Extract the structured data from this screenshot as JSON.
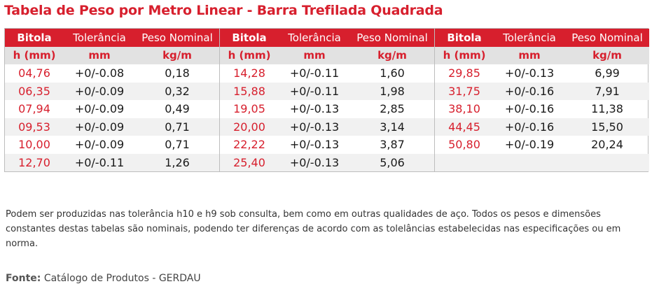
{
  "colors": {
    "accent": "#d71f2d"
  },
  "title": "Tabela de Peso por Metro Linear - Barra Trefilada Quadrada",
  "headers": {
    "bitola": "Bitola",
    "tolerancia": "Tolerância",
    "peso": "Peso Nominal"
  },
  "units": {
    "bitola": "h (mm)",
    "tolerancia": "mm",
    "peso": "kg/m"
  },
  "blocks": [
    {
      "rows": [
        {
          "bitola": "04,76",
          "tolerancia": "+0/-0.08",
          "peso": "0,18"
        },
        {
          "bitola": "06,35",
          "tolerancia": "+0/-0.09",
          "peso": "0,32"
        },
        {
          "bitola": "07,94",
          "tolerancia": "+0/-0.09",
          "peso": "0,49"
        },
        {
          "bitola": "09,53",
          "tolerancia": "+0/-0.09",
          "peso": "0,71"
        },
        {
          "bitola": "10,00",
          "tolerancia": "+0/-0.09",
          "peso": "0,71"
        },
        {
          "bitola": "12,70",
          "tolerancia": "+0/-0.11",
          "peso": "1,26"
        }
      ]
    },
    {
      "rows": [
        {
          "bitola": "14,28",
          "tolerancia": "+0/-0.11",
          "peso": "1,60"
        },
        {
          "bitola": "15,88",
          "tolerancia": "+0/-0.11",
          "peso": "1,98"
        },
        {
          "bitola": "19,05",
          "tolerancia": "+0/-0.13",
          "peso": "2,85"
        },
        {
          "bitola": "20,00",
          "tolerancia": "+0/-0.13",
          "peso": "3,14"
        },
        {
          "bitola": "22,22",
          "tolerancia": "+0/-0.13",
          "peso": "3,87"
        },
        {
          "bitola": "25,40",
          "tolerancia": "+0/-0.13",
          "peso": "5,06"
        }
      ]
    },
    {
      "rows": [
        {
          "bitola": "29,85",
          "tolerancia": "+0/-0.13",
          "peso": "6,99"
        },
        {
          "bitola": "31,75",
          "tolerancia": "+0/-0.16",
          "peso": "7,91"
        },
        {
          "bitola": "38,10",
          "tolerancia": "+0/-0.16",
          "peso": "11,38"
        },
        {
          "bitola": "44,45",
          "tolerancia": "+0/-0.16",
          "peso": "15,50"
        },
        {
          "bitola": "50,80",
          "tolerancia": "+0/-0.19",
          "peso": "20,24"
        },
        {
          "bitola": "",
          "tolerancia": "",
          "peso": ""
        }
      ]
    }
  ],
  "note": "Podem ser produzidas nas tolerância h10 e h9 sob consulta, bem como em outras qualidades de aço. Todos os pesos e dimensões constantes destas tabelas são nominais, podendo ter diferenças de acordo com as tolelâncias estabelecidas nas especificações ou em norma.",
  "source": {
    "label": "Fonte:",
    "text": " Catálogo de Produtos - GERDAU"
  }
}
